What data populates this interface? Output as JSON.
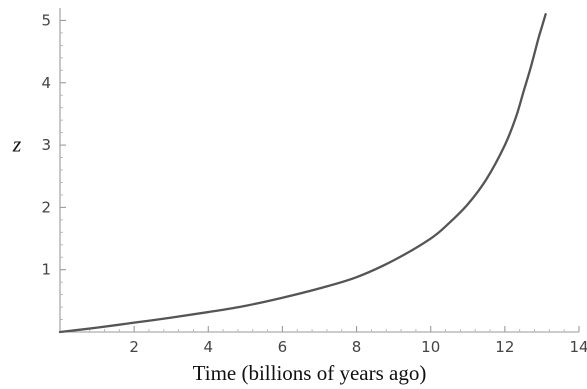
{
  "chart_data": {
    "type": "line",
    "title": "",
    "xlabel": "Time (billions of years ago)",
    "ylabel": "z",
    "xlim": [
      0,
      14
    ],
    "ylim": [
      0,
      5.2
    ],
    "x_ticks": [
      2,
      4,
      6,
      8,
      10,
      12,
      14
    ],
    "y_ticks": [
      1,
      2,
      3,
      4,
      5
    ],
    "x_tick_labels": [
      "2",
      "4",
      "6",
      "8",
      "10",
      "12",
      "14"
    ],
    "y_tick_labels": [
      "1",
      "2",
      "3",
      "4",
      "5"
    ],
    "grid": false,
    "legend": "none",
    "series": [
      {
        "color": "#555555",
        "x": [
          0,
          1,
          2,
          3,
          4,
          5,
          6,
          7,
          8,
          9,
          10,
          10.5,
          11,
          11.5,
          12,
          12.3,
          12.5,
          12.7,
          12.9,
          13.0,
          13.1
        ],
        "y": [
          0,
          0.07,
          0.15,
          0.23,
          0.32,
          0.42,
          0.55,
          0.7,
          0.88,
          1.15,
          1.5,
          1.75,
          2.05,
          2.45,
          3.0,
          3.45,
          3.85,
          4.25,
          4.7,
          4.9,
          5.1
        ]
      }
    ]
  }
}
